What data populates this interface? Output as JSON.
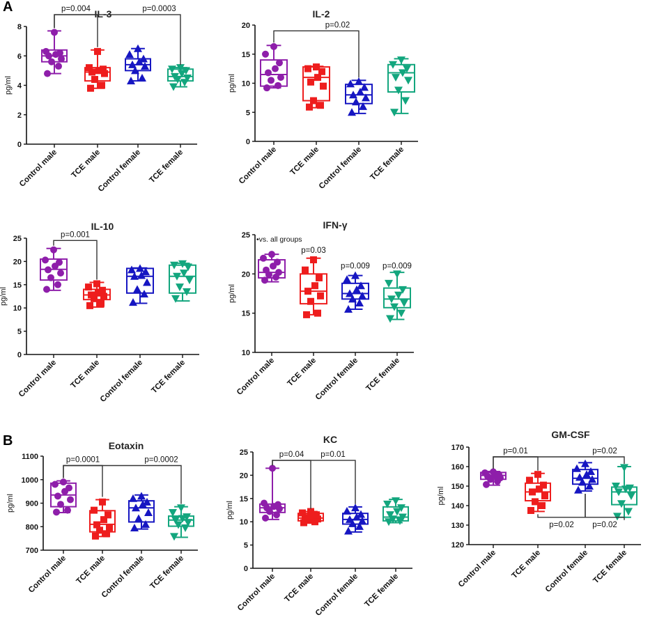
{
  "panel_labels": [
    "A",
    "B"
  ],
  "colors": {
    "control_male": "#8e1eaa",
    "tce_male": "#ee1d1d",
    "control_female": "#1616c2",
    "tce_female": "#13a67e"
  },
  "chart_data": [
    {
      "id": "il3",
      "type": "box",
      "title": "IL-3",
      "ylabel": "pg/ml",
      "ylim": [
        0,
        8
      ],
      "yticks": [
        0,
        2,
        4,
        6,
        8
      ],
      "categories": [
        "Control male",
        "TCE male",
        "Control female",
        "TCE female"
      ],
      "markers": [
        "circle",
        "square",
        "triangle-up",
        "triangle-down"
      ],
      "series": [
        {
          "name": "Control male",
          "min": 4.8,
          "q1": 5.6,
          "median": 6.0,
          "q3": 6.4,
          "max": 7.7,
          "points": [
            4.8,
            5.3,
            5.6,
            5.8,
            6.0,
            6.1,
            6.2,
            6.3,
            7.6
          ]
        },
        {
          "name": "TCE male",
          "min": 3.8,
          "q1": 4.3,
          "median": 4.9,
          "q3": 5.2,
          "max": 6.4,
          "points": [
            3.8,
            4.0,
            4.4,
            4.8,
            4.9,
            5.0,
            5.1,
            5.2,
            6.3
          ]
        },
        {
          "name": "Control female",
          "min": 4.3,
          "q1": 5.0,
          "median": 5.4,
          "q3": 5.8,
          "max": 6.5,
          "points": [
            4.3,
            4.5,
            5.0,
            5.3,
            5.4,
            5.6,
            5.8,
            6.1,
            6.5
          ]
        },
        {
          "name": "TCE female",
          "min": 3.9,
          "q1": 4.3,
          "median": 4.6,
          "q3": 5.1,
          "max": 5.2,
          "points": [
            3.9,
            4.2,
            4.4,
            4.5,
            4.6,
            4.8,
            5.0,
            5.1,
            5.2
          ]
        }
      ],
      "annotations": [
        {
          "label": "p=0.004",
          "from": 0,
          "to": 1,
          "level": 8.8,
          "type": "bracket-top"
        },
        {
          "label": "p=0.0003",
          "from": 0,
          "to": 3,
          "level": 8.8,
          "type": "bracket-top"
        }
      ]
    },
    {
      "id": "il2",
      "type": "box",
      "title": "IL-2",
      "ylabel": "pg/ml",
      "ylim": [
        0,
        20
      ],
      "yticks": [
        0,
        5,
        10,
        15,
        20
      ],
      "categories": [
        "Control male",
        "TCE male",
        "Control female",
        "TCE female"
      ],
      "markers": [
        "circle",
        "square",
        "triangle-up",
        "triangle-down"
      ],
      "series": [
        {
          "name": "Control male",
          "min": 9.2,
          "q1": 9.5,
          "median": 11.5,
          "q3": 14.0,
          "max": 16.5,
          "points": [
            9.2,
            9.6,
            10.5,
            11.0,
            11.8,
            12.5,
            13.5,
            15.0,
            16.3
          ]
        },
        {
          "name": "TCE male",
          "min": 5.8,
          "q1": 7.0,
          "median": 11.0,
          "q3": 12.8,
          "max": 12.9,
          "points": [
            5.9,
            6.2,
            7.0,
            9.5,
            10.2,
            11.0,
            12.0,
            12.5,
            12.8
          ]
        },
        {
          "name": "Control female",
          "min": 4.8,
          "q1": 6.5,
          "median": 8.0,
          "q3": 9.8,
          "max": 10.5,
          "points": [
            5.0,
            6.0,
            6.8,
            7.5,
            8.0,
            8.5,
            9.3,
            9.9,
            10.3
          ]
        },
        {
          "name": "TCE female",
          "min": 4.8,
          "q1": 8.5,
          "median": 11.8,
          "q3": 13.2,
          "max": 14.2,
          "points": [
            5.0,
            7.0,
            8.8,
            10.5,
            11.0,
            11.8,
            12.5,
            13.2,
            14.0
          ]
        }
      ],
      "annotations": [
        {
          "label": "p=0.02",
          "from": 0,
          "to": 2,
          "level": 19.0,
          "type": "bracket-top"
        }
      ]
    },
    {
      "id": "il10",
      "type": "box",
      "title": "IL-10",
      "ylabel": "pg/ml",
      "ylim": [
        0,
        25
      ],
      "yticks": [
        0,
        5,
        10,
        15,
        20,
        25
      ],
      "categories": [
        "Control male",
        "TCE male",
        "Control female",
        "TCE female"
      ],
      "markers": [
        "circle",
        "square",
        "triangle-up",
        "triangle-down"
      ],
      "series": [
        {
          "name": "Control male",
          "min": 13.8,
          "q1": 16.0,
          "median": 18.3,
          "q3": 20.5,
          "max": 22.8,
          "points": [
            14.0,
            15.0,
            16.5,
            17.5,
            18.2,
            19.0,
            19.8,
            20.3,
            22.5
          ]
        },
        {
          "name": "TCE male",
          "min": 10.2,
          "q1": 11.8,
          "median": 12.8,
          "q3": 14.0,
          "max": 15.5,
          "points": [
            10.5,
            11.0,
            12.0,
            12.5,
            12.8,
            13.2,
            13.8,
            14.5,
            15.2
          ]
        },
        {
          "name": "Control female",
          "min": 11.0,
          "q1": 13.2,
          "median": 16.8,
          "q3": 18.5,
          "max": 18.6,
          "points": [
            11.2,
            13.0,
            14.0,
            15.5,
            16.8,
            17.0,
            17.8,
            18.2,
            18.5
          ]
        },
        {
          "name": "TCE female",
          "min": 11.5,
          "q1": 13.2,
          "median": 16.8,
          "q3": 19.2,
          "max": 19.6,
          "points": [
            12.0,
            13.5,
            14.5,
            16.0,
            16.8,
            17.5,
            18.8,
            19.2,
            19.5
          ]
        }
      ],
      "annotations": [
        {
          "label": "p=0.001",
          "from": 0,
          "to": 1,
          "level": 24.5,
          "type": "bracket-top"
        }
      ]
    },
    {
      "id": "ifng",
      "type": "box",
      "title": "IFN-γ",
      "ylabel": "pg/ml",
      "ylim": [
        10,
        25
      ],
      "yticks": [
        10,
        15,
        20,
        25
      ],
      "categories": [
        "Control male",
        "TCE male",
        "Control female",
        "TCE female"
      ],
      "markers": [
        "circle",
        "square",
        "triangle-up",
        "triangle-down"
      ],
      "series": [
        {
          "name": "Control male",
          "min": 19.0,
          "q1": 19.5,
          "median": 20.2,
          "q3": 21.8,
          "max": 22.5,
          "points": [
            19.2,
            19.6,
            19.9,
            20.2,
            20.5,
            21.0,
            21.5,
            22.0,
            22.5
          ]
        },
        {
          "name": "TCE male",
          "min": 14.8,
          "q1": 16.2,
          "median": 17.8,
          "q3": 20.0,
          "max": 22.0,
          "points": [
            14.8,
            15.0,
            16.5,
            17.2,
            17.8,
            18.5,
            19.5,
            20.5,
            21.8
          ]
        },
        {
          "name": "Control female",
          "min": 15.5,
          "q1": 16.8,
          "median": 17.5,
          "q3": 18.8,
          "max": 19.8,
          "points": [
            15.5,
            16.3,
            16.8,
            17.2,
            17.5,
            18.0,
            18.5,
            19.3,
            19.8
          ]
        },
        {
          "name": "TCE female",
          "min": 14.2,
          "q1": 15.7,
          "median": 16.8,
          "q3": 18.2,
          "max": 20.2,
          "points": [
            14.3,
            15.0,
            15.8,
            16.3,
            16.8,
            17.3,
            18.0,
            18.8,
            20.0
          ]
        }
      ],
      "annotations": [
        {
          "label": "•vs. all groups",
          "type": "note"
        },
        {
          "label": "p=0.03",
          "at": 1,
          "level": 22.7,
          "type": "label"
        },
        {
          "label": "p=0.009",
          "at": 2,
          "level": 20.7,
          "type": "label"
        },
        {
          "label": "p=0.009",
          "at": 3,
          "level": 20.7,
          "type": "label"
        }
      ]
    },
    {
      "id": "eotaxin",
      "type": "box",
      "title": "Eotaxin",
      "ylabel": "pg/ml",
      "ylim": [
        700,
        1100
      ],
      "yticks": [
        700,
        800,
        900,
        1000,
        1100
      ],
      "categories": [
        "Control male",
        "TCE male",
        "Control female",
        "TCE female"
      ],
      "markers": [
        "circle",
        "square",
        "triangle-up",
        "triangle-down"
      ],
      "series": [
        {
          "name": "Control male",
          "min": 860,
          "q1": 885,
          "median": 935,
          "q3": 985,
          "max": 995,
          "points": [
            862,
            870,
            895,
            915,
            930,
            950,
            965,
            980,
            990
          ]
        },
        {
          "name": "TCE male",
          "min": 758,
          "q1": 778,
          "median": 810,
          "q3": 868,
          "max": 915,
          "points": [
            760,
            770,
            785,
            795,
            808,
            830,
            850,
            870,
            905
          ]
        },
        {
          "name": "Control female",
          "min": 790,
          "q1": 820,
          "median": 880,
          "q3": 910,
          "max": 935,
          "points": [
            795,
            810,
            835,
            860,
            880,
            895,
            905,
            920,
            930
          ]
        },
        {
          "name": "TCE female",
          "min": 755,
          "q1": 802,
          "median": 828,
          "q3": 845,
          "max": 885,
          "points": [
            758,
            795,
            808,
            818,
            828,
            835,
            842,
            860,
            880
          ]
        }
      ],
      "annotations": [
        {
          "label": "p=0.0001",
          "from": 0,
          "to": 1,
          "level": 1060,
          "type": "bracket-top"
        },
        {
          "label": "p=0.0002",
          "from": 0,
          "to": 3,
          "level": 1060,
          "type": "bracket-top"
        }
      ]
    },
    {
      "id": "kc",
      "type": "box",
      "title": "KC",
      "ylabel": "pg/ml",
      "ylim": [
        0,
        25
      ],
      "yticks": [
        0,
        5,
        10,
        15,
        20,
        25
      ],
      "categories": [
        "Control male",
        "TCE male",
        "Control female",
        "TCE female"
      ],
      "markers": [
        "circle",
        "square",
        "triangle-up",
        "triangle-down"
      ],
      "series": [
        {
          "name": "Control male",
          "min": 10.5,
          "q1": 12.0,
          "median": 13.0,
          "q3": 13.8,
          "max": 21.5,
          "points": [
            10.8,
            11.5,
            12.2,
            12.8,
            13.0,
            13.3,
            13.7,
            14.0,
            21.5
          ]
        },
        {
          "name": "TCE male",
          "min": 9.8,
          "q1": 10.2,
          "median": 10.8,
          "q3": 11.8,
          "max": 12.2,
          "points": [
            9.8,
            10.0,
            10.3,
            10.6,
            10.9,
            11.2,
            11.5,
            11.9,
            12.2
          ]
        },
        {
          "name": "Control female",
          "min": 7.8,
          "q1": 9.5,
          "median": 10.5,
          "q3": 11.8,
          "max": 13.2,
          "points": [
            8.0,
            9.0,
            9.6,
            10.2,
            10.5,
            11.0,
            11.6,
            12.3,
            13.0
          ]
        },
        {
          "name": "TCE female",
          "min": 9.8,
          "q1": 10.2,
          "median": 11.0,
          "q3": 13.2,
          "max": 14.8,
          "points": [
            10.0,
            10.2,
            10.6,
            11.0,
            11.5,
            12.2,
            13.0,
            13.8,
            14.5
          ]
        }
      ],
      "annotations": [
        {
          "label": "p=0.04",
          "from": 0,
          "to": 1,
          "level": 23.2,
          "type": "bracket-top"
        },
        {
          "label": "p=0.01",
          "from": 0,
          "to": 2,
          "level": 23.2,
          "type": "bracket-top"
        }
      ]
    },
    {
      "id": "gmcsf",
      "type": "box",
      "title": "GM-CSF",
      "ylabel": "pg/ml",
      "ylim": [
        120,
        170
      ],
      "yticks": [
        120,
        130,
        140,
        150,
        160,
        170
      ],
      "categories": [
        "Control male",
        "TCE male",
        "Control female",
        "TCE female"
      ],
      "markers": [
        "circle",
        "square",
        "triangle-up",
        "triangle-down"
      ],
      "series": [
        {
          "name": "Control male",
          "min": 150.5,
          "q1": 153.5,
          "median": 155.5,
          "q3": 157.0,
          "max": 157.5,
          "points": [
            150.8,
            152.5,
            153.5,
            154.2,
            155.0,
            155.5,
            156.0,
            156.8,
            157.3
          ]
        },
        {
          "name": "TCE male",
          "min": 137.0,
          "q1": 142.5,
          "median": 147.0,
          "q3": 151.5,
          "max": 156.5,
          "points": [
            137.5,
            140.0,
            142.0,
            145.0,
            147.0,
            148.5,
            150.5,
            153.0,
            156.0
          ]
        },
        {
          "name": "Control female",
          "min": 147.5,
          "q1": 151.0,
          "median": 154.0,
          "q3": 158.5,
          "max": 162.0,
          "points": [
            148.0,
            150.0,
            152.0,
            153.5,
            154.5,
            156.0,
            157.5,
            159.0,
            161.5
          ]
        },
        {
          "name": "TCE female",
          "min": 134.0,
          "q1": 140.5,
          "median": 147.0,
          "q3": 149.5,
          "max": 160.0,
          "points": [
            134.5,
            137.0,
            141.0,
            145.0,
            147.0,
            148.5,
            149.0,
            150.0,
            159.5
          ]
        }
      ],
      "annotations": [
        {
          "label": "p=0.01",
          "from": 0,
          "to": 1,
          "level": 165.0,
          "type": "bracket-top"
        },
        {
          "label": "p=0.02",
          "from": 0,
          "to": 3,
          "level": 165.0,
          "type": "bracket-top"
        },
        {
          "label": "p=0.02",
          "from": 1,
          "to": 2,
          "level": 134.0,
          "type": "bracket-bottom"
        },
        {
          "label": "p=0.02",
          "from": 2,
          "to": 3,
          "level": 134.0,
          "type": "bracket-bottom"
        }
      ]
    }
  ]
}
